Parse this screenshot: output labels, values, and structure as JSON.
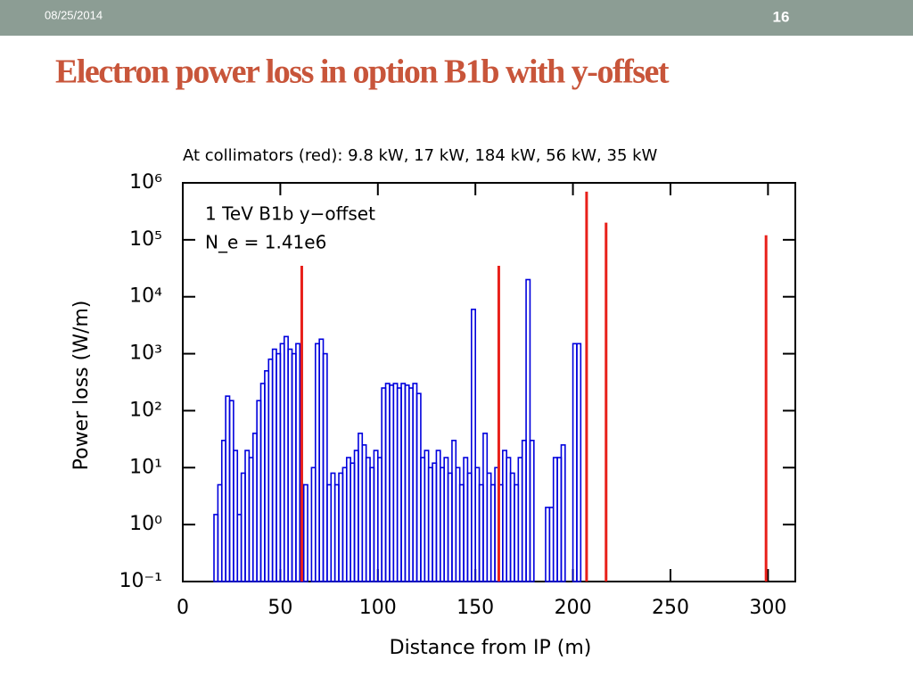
{
  "header": {
    "date": "08/25/2014",
    "page": "16"
  },
  "slide_title": "Electron power loss in option B1b with y-offset",
  "chart_data": {
    "type": "histogram",
    "title": "At collimators (red): 9.8 kW, 17 kW, 184 kW, 56 kW, 35 kW",
    "annotations": [
      "1 TeV B1b y−offset",
      "N_e = 1.41e6"
    ],
    "x_label": "Distance from IP (m)",
    "y_label": "Power loss (W/m)",
    "log_y": true,
    "xlim": [
      0,
      314
    ],
    "xticks": [
      0,
      50,
      100,
      150,
      200,
      250,
      300
    ],
    "ylim": [
      0.1,
      1000000
    ],
    "yticks": [
      {
        "value": 0.1,
        "label": "10⁻¹"
      },
      {
        "value": 1,
        "label": "10⁰"
      },
      {
        "value": 10,
        "label": "10¹"
      },
      {
        "value": 100,
        "label": "10²"
      },
      {
        "value": 1000,
        "label": "10³"
      },
      {
        "value": 10000,
        "label": "10⁴"
      },
      {
        "value": 100000,
        "label": "10⁵"
      },
      {
        "value": 1000000,
        "label": "10⁶"
      }
    ],
    "histogram": {
      "color": "#0000dd",
      "bins": [
        16,
        18,
        20,
        22,
        24,
        26,
        28,
        30,
        32,
        34,
        36,
        38,
        40,
        42,
        44,
        46,
        48,
        50,
        52,
        54,
        56,
        58,
        60,
        62,
        64,
        66,
        68,
        70,
        72,
        74,
        76,
        78,
        80,
        82,
        84,
        86,
        88,
        90,
        92,
        94,
        96,
        98,
        100,
        102,
        104,
        106,
        108,
        110,
        112,
        114,
        116,
        118,
        120,
        122,
        124,
        126,
        128,
        130,
        132,
        134,
        136,
        138,
        140,
        142,
        144,
        146,
        148,
        150,
        152,
        154,
        156,
        158,
        160,
        162,
        164,
        166,
        168,
        170,
        172,
        174,
        176,
        178,
        180,
        182,
        184,
        186,
        188,
        190,
        192,
        194,
        196,
        198,
        200,
        202,
        204,
        206,
        208,
        210
      ],
      "values": [
        1.5,
        5,
        30,
        180,
        150,
        20,
        1.5,
        8,
        20,
        15,
        40,
        150,
        300,
        500,
        800,
        1200,
        1000,
        1500,
        2000,
        1200,
        1000,
        1500,
        5,
        5,
        0.1,
        10,
        1500,
        1800,
        1000,
        5,
        8,
        5,
        8,
        10,
        15,
        12,
        20,
        40,
        25,
        15,
        10,
        20,
        15,
        250,
        300,
        280,
        300,
        250,
        300,
        280,
        250,
        300,
        200,
        15,
        20,
        10,
        12,
        20,
        10,
        15,
        8,
        30,
        10,
        5,
        15,
        8,
        6000,
        10,
        5,
        40,
        8,
        5,
        10,
        5,
        20,
        15,
        8,
        5,
        15,
        30,
        20000,
        30,
        0.1,
        0.1,
        0.1,
        2,
        2,
        15,
        15,
        25,
        0.1,
        0.1,
        1500,
        1500,
        0.1,
        0.1,
        0.1
      ]
    },
    "collimators": {
      "color": "#e8201a",
      "x": [
        61,
        162,
        207,
        217,
        299
      ],
      "values": [
        35000,
        35000,
        700000,
        200000,
        120000
      ]
    }
  }
}
